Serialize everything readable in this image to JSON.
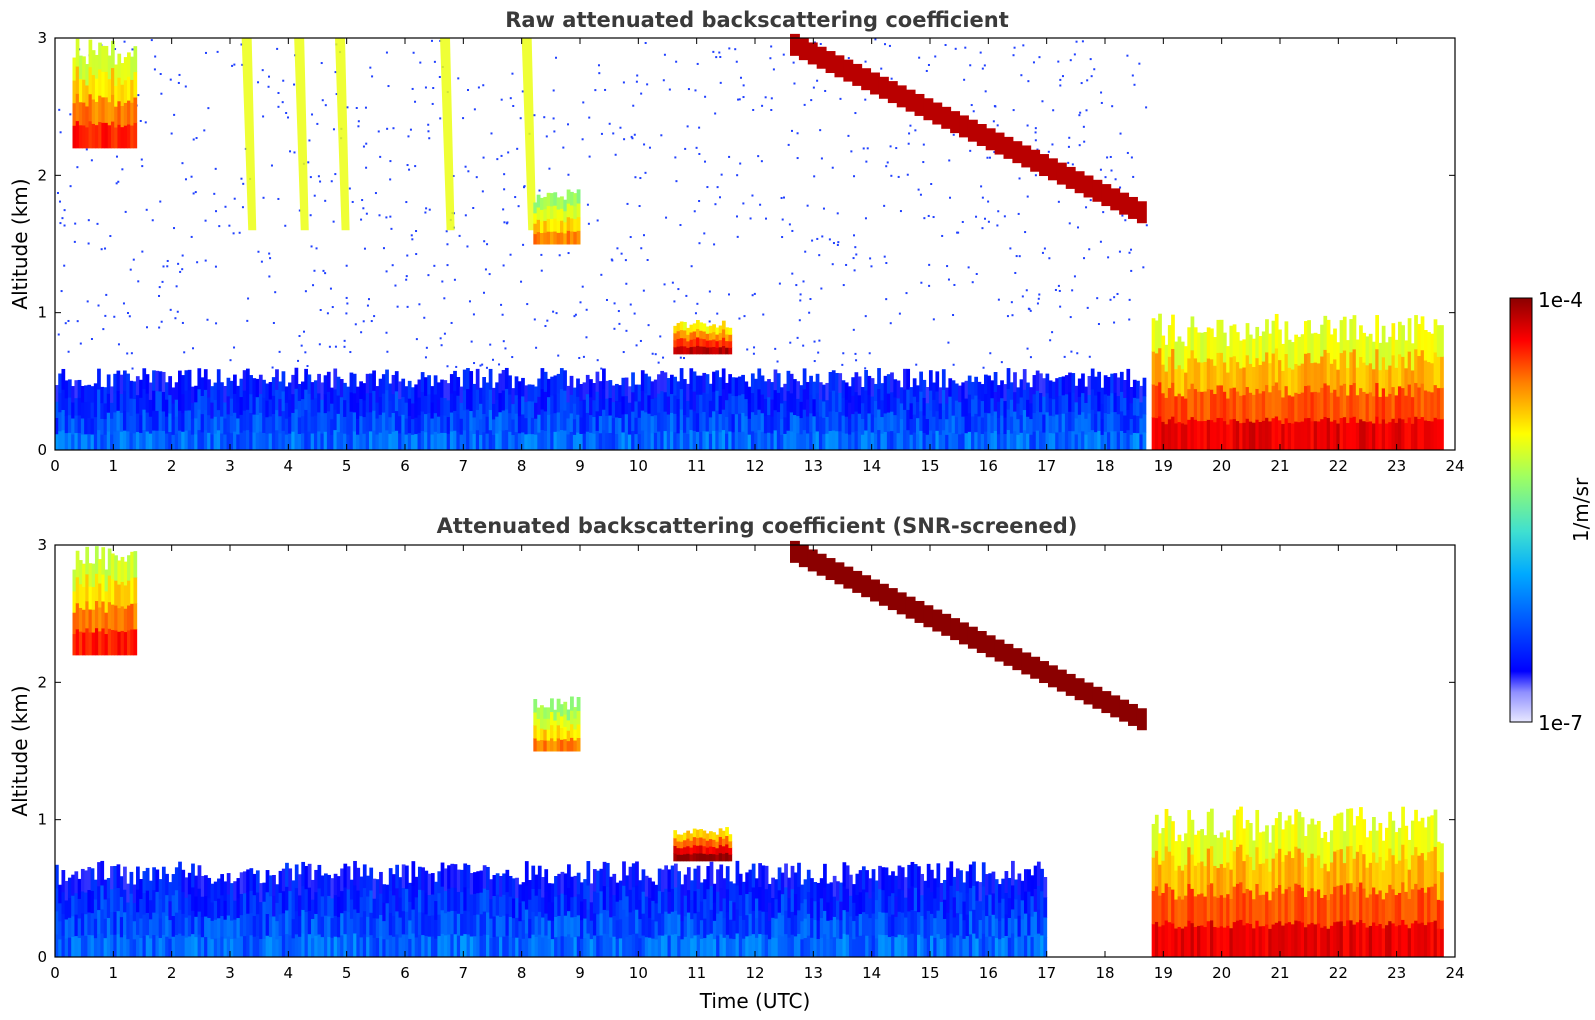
{
  "chart_data": [
    {
      "type": "heatmap",
      "title": "Raw attenuated backscattering coefficient",
      "xlabel": "",
      "ylabel": "Altitude (km)",
      "xlim": [
        0,
        24
      ],
      "ylim": [
        0,
        3
      ],
      "xticks": [
        "0",
        "1",
        "2",
        "3",
        "4",
        "5",
        "6",
        "7",
        "8",
        "9",
        "10",
        "11",
        "12",
        "13",
        "14",
        "15",
        "16",
        "17",
        "18",
        "19",
        "20",
        "21",
        "22",
        "23",
        "24"
      ],
      "yticks": [
        "0",
        "1",
        "2",
        "3"
      ],
      "features": [
        {
          "name": "high cirrus streak",
          "x_start": 0.3,
          "x_end": 1.4,
          "y_bottom": 2.2,
          "y_top": 3.0,
          "level": 0.85
        },
        {
          "name": "fall streaks",
          "x": [
            3.2,
            4.1,
            4.8,
            6.6,
            8.0
          ],
          "y_bottom": 1.6,
          "y_top": 3.0,
          "level": 0.6
        },
        {
          "name": "mid-level cloud",
          "x_start": 8.2,
          "x_end": 9.0,
          "y_bottom": 1.5,
          "y_top": 1.9,
          "level": 0.75
        },
        {
          "name": "low cloud layer",
          "x_start": 10.6,
          "x_end": 11.6,
          "y_bottom": 0.7,
          "y_top": 0.95,
          "level": 0.95
        },
        {
          "name": "descending cloud base",
          "x_start": 12.6,
          "x_end": 18.7,
          "y_start": 2.95,
          "y_end": 1.7,
          "level": 0.95
        },
        {
          "name": "boundary layer aerosol",
          "x_start": 0.0,
          "x_end": 18.7,
          "y_bottom": 0.0,
          "y_top": 0.6,
          "level": 0.2
        },
        {
          "name": "afternoon mixed layer",
          "x_start": 18.8,
          "x_end": 23.8,
          "y_bottom": 0.0,
          "y_top": 1.0,
          "level": 0.9
        }
      ]
    },
    {
      "type": "heatmap",
      "title": "Attenuated backscattering coefficient (SNR-screened)",
      "xlabel": "Time (UTC)",
      "ylabel": "Altitude (km)",
      "xlim": [
        0,
        24
      ],
      "ylim": [
        0,
        3
      ],
      "xticks": [
        "0",
        "1",
        "2",
        "3",
        "4",
        "5",
        "6",
        "7",
        "8",
        "9",
        "10",
        "11",
        "12",
        "13",
        "14",
        "15",
        "16",
        "17",
        "18",
        "19",
        "20",
        "21",
        "22",
        "23",
        "24"
      ],
      "yticks": [
        "0",
        "1",
        "2",
        "3"
      ],
      "features": [
        {
          "name": "high cirrus streak",
          "x_start": 0.3,
          "x_end": 1.4,
          "y_bottom": 2.2,
          "y_top": 3.0,
          "level": 0.85
        },
        {
          "name": "mid-level cloud",
          "x_start": 8.2,
          "x_end": 9.0,
          "y_bottom": 1.5,
          "y_top": 1.9,
          "level": 0.75
        },
        {
          "name": "low cloud layer",
          "x_start": 10.6,
          "x_end": 11.6,
          "y_bottom": 0.7,
          "y_top": 0.95,
          "level": 1.0
        },
        {
          "name": "descending cloud base",
          "x_start": 12.6,
          "x_end": 18.7,
          "y_start": 2.95,
          "y_end": 1.7,
          "level": 1.0
        },
        {
          "name": "boundary layer aerosol",
          "x_start": 0.0,
          "x_end": 17.0,
          "y_bottom": 0.0,
          "y_top": 0.7,
          "level": 0.2
        },
        {
          "name": "afternoon mixed layer",
          "x_start": 18.8,
          "x_end": 23.8,
          "y_bottom": 0.0,
          "y_top": 1.1,
          "level": 0.9
        }
      ]
    }
  ],
  "colorbar": {
    "label": "1/m/sr",
    "max_label": "1e-4",
    "min_label": "1e-7",
    "colormap": [
      "#e8e8ff",
      "#0000ff",
      "#00aaff",
      "#40e0d0",
      "#a0ff60",
      "#ffff00",
      "#ff8000",
      "#ff0000",
      "#8b0000"
    ]
  }
}
